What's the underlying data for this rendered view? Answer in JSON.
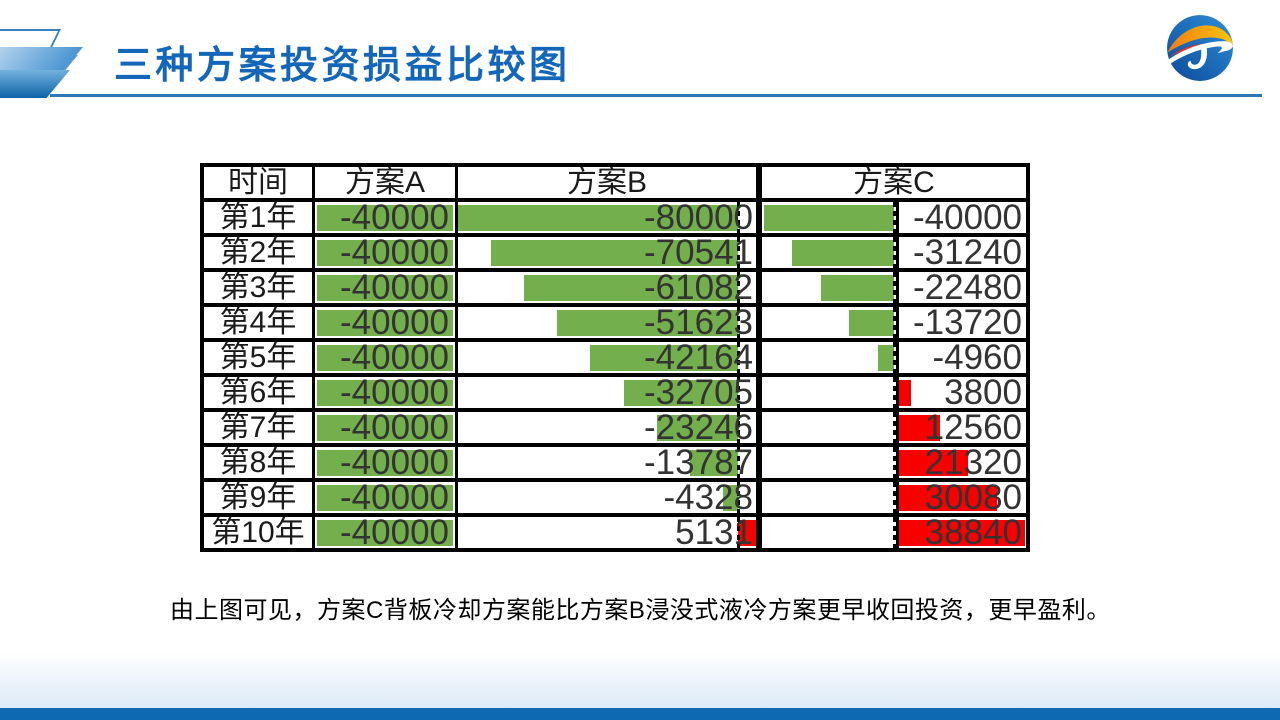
{
  "slide": {
    "title": "三种方案投资损益比较图",
    "caption": "由上图可见，方案C背板冷却方案能比方案B浸没式液冷方案更早收回投资，更早盈利。"
  },
  "table": {
    "time_header": "时间"
  },
  "chart_data": {
    "type": "table",
    "subtype": "table-with-in-cell-data-bars",
    "title": "三种方案投资损益比较图",
    "categories": [
      "第1年",
      "第2年",
      "第3年",
      "第4年",
      "第5年",
      "第6年",
      "第7年",
      "第8年",
      "第9年",
      "第10年"
    ],
    "series": [
      {
        "name": "方案A",
        "values": [
          -40000,
          -40000,
          -40000,
          -40000,
          -40000,
          -40000,
          -40000,
          -40000,
          -40000,
          -40000
        ]
      },
      {
        "name": "方案B",
        "values": [
          -80000,
          -70541,
          -61082,
          -51623,
          -42164,
          -32705,
          -23246,
          -13787,
          -4328,
          5131
        ]
      },
      {
        "name": "方案C",
        "values": [
          -40000,
          -31240,
          -22480,
          -13720,
          -4960,
          3800,
          12560,
          21320,
          30080,
          38840
        ]
      }
    ],
    "bar_rule": "negative values drawn as green bars extending left from a dashed zero axis; positive values drawn as red bars extending right",
    "legend_position": "none",
    "grid": "black cell borders"
  },
  "colors": {
    "title_blue": "#1467B8",
    "underline_blue": "#2E75B6",
    "bar_green": "#74AF4D",
    "bar_red": "#F90000",
    "border_black": "#000000",
    "value_text": "#333333",
    "label_text": "#1A1A1A",
    "caption_text": "#000000",
    "bottom_bar": "#0F68B2"
  }
}
